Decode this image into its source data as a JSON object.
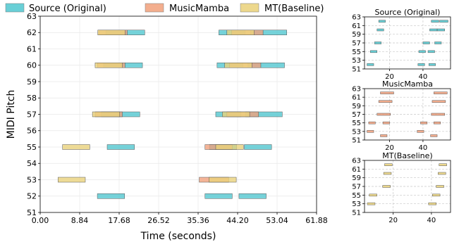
{
  "legend": {
    "placement": "top",
    "items": [
      {
        "label": "Source (Original)",
        "color": "#4fc7cf"
      },
      {
        "label": "MusicMamba",
        "color": "#f2a07b"
      },
      {
        "label": "MT(Baseline)",
        "color": "#ead27a"
      }
    ]
  },
  "colors": {
    "source": "#4fc7cf",
    "musicmamba": "#f2a07b",
    "baseline": "#ead27a",
    "edge": "#555555"
  },
  "chart_data": [
    {
      "type": "bar",
      "subtype": "piano-roll",
      "title": "",
      "xlabel": "Time (seconds)",
      "ylabel": "MIDI Pitch",
      "xlim": [
        0,
        61.88
      ],
      "ylim": [
        51,
        63
      ],
      "xticks": [
        "0.00",
        "8.84",
        "17.68",
        "26.52",
        "35.36",
        "44.20",
        "53.04",
        "61.88"
      ],
      "yticks": [
        "51",
        "52",
        "53",
        "54",
        "55",
        "56",
        "57",
        "58",
        "59",
        "60",
        "61",
        "62",
        "63"
      ],
      "grid": true,
      "series": [
        {
          "name": "Source (Original)",
          "notes": [
            {
              "start": 12.8,
              "end": 18.9,
              "pitch": 52
            },
            {
              "start": 15.0,
              "end": 21.1,
              "pitch": 55
            },
            {
              "start": 13.7,
              "end": 22.3,
              "pitch": 57
            },
            {
              "start": 14.2,
              "end": 22.9,
              "pitch": 60
            },
            {
              "start": 14.7,
              "end": 23.4,
              "pitch": 62
            },
            {
              "start": 36.9,
              "end": 43.0,
              "pitch": 52
            },
            {
              "start": 44.5,
              "end": 50.6,
              "pitch": 52
            },
            {
              "start": 37.9,
              "end": 44.0,
              "pitch": 55
            },
            {
              "start": 45.7,
              "end": 51.8,
              "pitch": 55
            },
            {
              "start": 39.3,
              "end": 44.9,
              "pitch": 57
            },
            {
              "start": 46.0,
              "end": 54.2,
              "pitch": 57
            },
            {
              "start": 39.6,
              "end": 45.4,
              "pitch": 60
            },
            {
              "start": 46.5,
              "end": 54.7,
              "pitch": 60
            },
            {
              "start": 40.0,
              "end": 45.9,
              "pitch": 62
            },
            {
              "start": 47.1,
              "end": 55.2,
              "pitch": 62
            }
          ]
        },
        {
          "name": "MusicMamba",
          "notes": [
            {
              "start": 12.3,
              "end": 18.4,
              "pitch": 57
            },
            {
              "start": 12.8,
              "end": 19.0,
              "pitch": 60
            },
            {
              "start": 13.1,
              "end": 19.5,
              "pitch": 62
            },
            {
              "start": 35.6,
              "end": 42.2,
              "pitch": 53
            },
            {
              "start": 36.9,
              "end": 43.0,
              "pitch": 55
            },
            {
              "start": 41.8,
              "end": 48.9,
              "pitch": 57
            },
            {
              "start": 42.4,
              "end": 49.4,
              "pitch": 60
            },
            {
              "start": 42.9,
              "end": 49.9,
              "pitch": 62
            }
          ]
        },
        {
          "name": "MT(Baseline)",
          "notes": [
            {
              "start": 4.0,
              "end": 10.1,
              "pitch": 53
            },
            {
              "start": 5.0,
              "end": 11.1,
              "pitch": 55
            },
            {
              "start": 11.7,
              "end": 17.8,
              "pitch": 57
            },
            {
              "start": 12.3,
              "end": 18.4,
              "pitch": 60
            },
            {
              "start": 12.9,
              "end": 19.0,
              "pitch": 62
            },
            {
              "start": 37.8,
              "end": 43.9,
              "pitch": 53
            },
            {
              "start": 39.3,
              "end": 45.5,
              "pitch": 55
            },
            {
              "start": 40.8,
              "end": 46.9,
              "pitch": 57
            },
            {
              "start": 41.3,
              "end": 47.4,
              "pitch": 60
            },
            {
              "start": 41.8,
              "end": 47.9,
              "pitch": 62
            }
          ]
        }
      ]
    },
    {
      "type": "bar",
      "subtype": "piano-roll",
      "title": "Source (Original)",
      "xlim": [
        5,
        56.5
      ],
      "ylim": [
        51,
        63
      ],
      "xticks": [
        20,
        40
      ],
      "yticks": [
        51,
        53,
        55,
        57,
        59,
        61,
        63
      ],
      "grid": true,
      "series": [
        {
          "name": "Source (Original)",
          "notes": [
            {
              "start": 6.5,
              "end": 10.5,
              "pitch": 52
            },
            {
              "start": 8.5,
              "end": 12.5,
              "pitch": 55
            },
            {
              "start": 11,
              "end": 15,
              "pitch": 57
            },
            {
              "start": 12.5,
              "end": 16.5,
              "pitch": 60
            },
            {
              "start": 13.5,
              "end": 17.5,
              "pitch": 62
            },
            {
              "start": 37,
              "end": 41,
              "pitch": 52
            },
            {
              "start": 43.5,
              "end": 47.5,
              "pitch": 52
            },
            {
              "start": 37.5,
              "end": 41.5,
              "pitch": 55
            },
            {
              "start": 43,
              "end": 47,
              "pitch": 55
            },
            {
              "start": 40,
              "end": 44,
              "pitch": 57
            },
            {
              "start": 47,
              "end": 51,
              "pitch": 57
            },
            {
              "start": 44,
              "end": 48.5,
              "pitch": 60
            },
            {
              "start": 48.5,
              "end": 53,
              "pitch": 60
            },
            {
              "start": 45,
              "end": 49.5,
              "pitch": 62
            },
            {
              "start": 50,
              "end": 55,
              "pitch": 62
            }
          ]
        }
      ]
    },
    {
      "type": "bar",
      "subtype": "piano-roll",
      "title": "MusicMamba",
      "xlim": [
        5,
        56.5
      ],
      "ylim": [
        51,
        63
      ],
      "xticks": [
        20,
        40
      ],
      "yticks": [
        51,
        53,
        55,
        57,
        59,
        61,
        63
      ],
      "grid": true,
      "series": [
        {
          "name": "MusicMamba",
          "notes": [
            {
              "start": 6.5,
              "end": 10.5,
              "pitch": 53
            },
            {
              "start": 14.5,
              "end": 18.5,
              "pitch": 52
            },
            {
              "start": 7.5,
              "end": 11.5,
              "pitch": 55
            },
            {
              "start": 16,
              "end": 20,
              "pitch": 55
            },
            {
              "start": 12.5,
              "end": 20.5,
              "pitch": 57
            },
            {
              "start": 13.5,
              "end": 21.5,
              "pitch": 60
            },
            {
              "start": 14.5,
              "end": 22.5,
              "pitch": 62
            },
            {
              "start": 36.5,
              "end": 40.5,
              "pitch": 53
            },
            {
              "start": 44.5,
              "end": 48.5,
              "pitch": 52
            },
            {
              "start": 38.5,
              "end": 42.5,
              "pitch": 55
            },
            {
              "start": 46.5,
              "end": 50.5,
              "pitch": 55
            },
            {
              "start": 45,
              "end": 53,
              "pitch": 57
            },
            {
              "start": 45.5,
              "end": 53.5,
              "pitch": 60
            },
            {
              "start": 46.5,
              "end": 54.5,
              "pitch": 62
            }
          ]
        }
      ]
    },
    {
      "type": "bar",
      "subtype": "piano-roll",
      "title": "MT(Baseline)",
      "xlim": [
        5,
        50
      ],
      "ylim": [
        51,
        63
      ],
      "xticks": [
        20,
        40
      ],
      "yticks": [
        51,
        53,
        55,
        57,
        59,
        61,
        63
      ],
      "grid": true,
      "series": [
        {
          "name": "MT(Baseline)",
          "notes": [
            {
              "start": 6.5,
              "end": 10.5,
              "pitch": 53
            },
            {
              "start": 7.5,
              "end": 11.5,
              "pitch": 55
            },
            {
              "start": 14.5,
              "end": 18.5,
              "pitch": 57
            },
            {
              "start": 15,
              "end": 19,
              "pitch": 60
            },
            {
              "start": 15.5,
              "end": 19.5,
              "pitch": 62
            },
            {
              "start": 38.5,
              "end": 42.5,
              "pitch": 53
            },
            {
              "start": 40.5,
              "end": 44.5,
              "pitch": 55
            },
            {
              "start": 42.5,
              "end": 46.5,
              "pitch": 57
            },
            {
              "start": 43.5,
              "end": 47.5,
              "pitch": 60
            },
            {
              "start": 44,
              "end": 48,
              "pitch": 62
            }
          ]
        }
      ]
    }
  ]
}
